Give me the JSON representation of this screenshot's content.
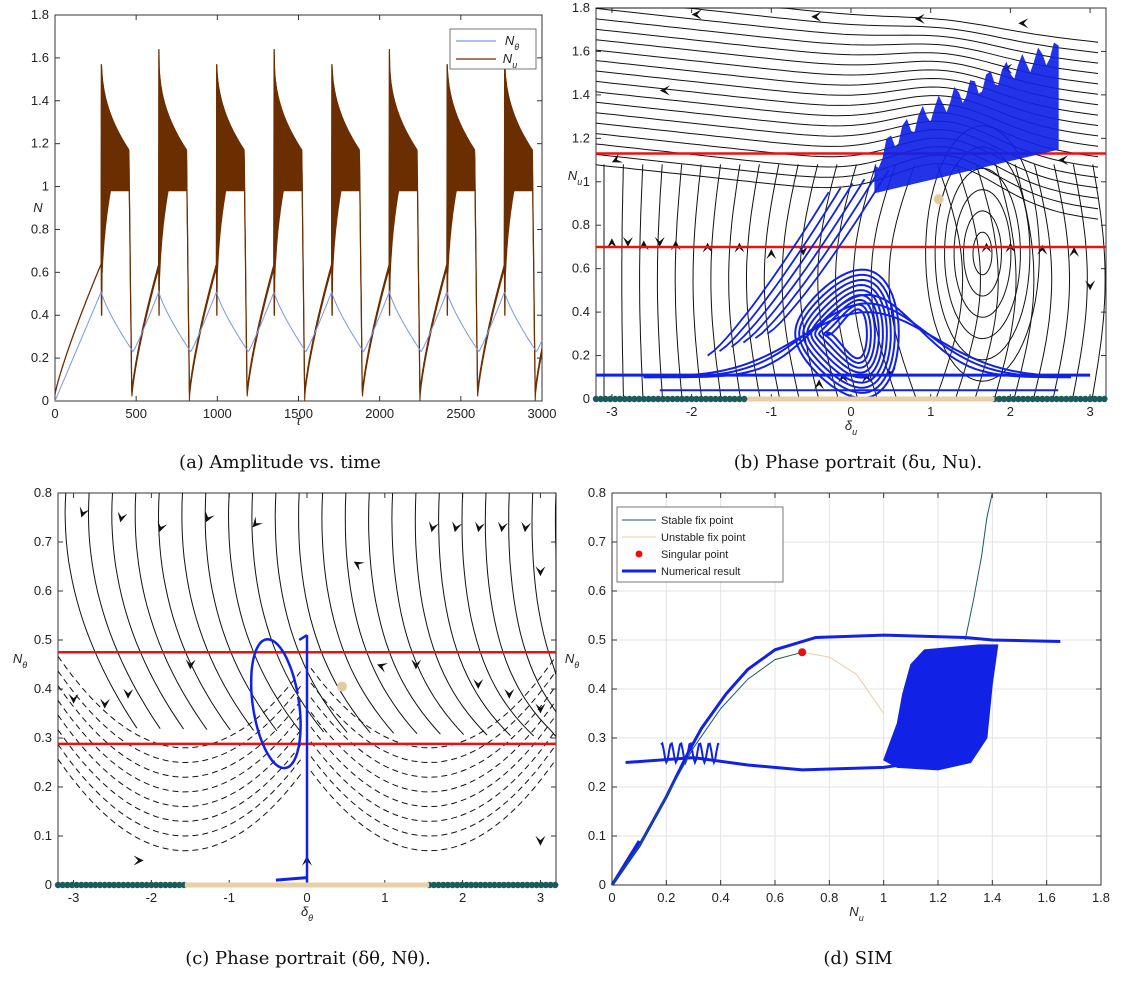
{
  "figure": {
    "captions": {
      "a": "(a) Amplitude vs. time",
      "b": "(b) Phase portrait (δu, Nu).",
      "c": "(c) Phase portrait (δθ, Nθ).",
      "d": "(d) SIM"
    }
  },
  "colors": {
    "n_theta": "#7a96e6",
    "n_u": "#6b2e00",
    "red_line": "#e8130f",
    "traj": "#1122e6",
    "stable": "#1d5a5a",
    "unstable": "#e8cfa5",
    "singular": "#e81010",
    "singular_bg": "#e5c9a0"
  },
  "chart_data": [
    {
      "id": "a",
      "type": "line",
      "title": "",
      "xlabel": "τ",
      "ylabel": "N",
      "xlim": [
        0,
        3000
      ],
      "ylim": [
        0,
        1.8
      ],
      "xticks": [
        0,
        500,
        1000,
        1500,
        2000,
        2500,
        3000
      ],
      "xtick_labels": [
        "0",
        "500",
        "1000",
        "1500",
        "2000",
        "2500",
        "3000"
      ],
      "yticks": [
        0,
        0.2,
        0.4,
        0.6,
        0.8,
        1,
        1.2,
        1.4,
        1.6,
        1.8
      ],
      "ytick_labels": [
        "0",
        "0.2",
        "0.4",
        "0.6",
        "0.8",
        "1",
        "1.2",
        "1.4",
        "1.6",
        "1.8"
      ],
      "legend_position": "top-right",
      "legend": [
        "Nθ",
        "Nu"
      ],
      "series": [
        {
          "name": "Nθ",
          "period": 355,
          "peak": 0.51,
          "trough": 0.23,
          "peak_time": 285
        },
        {
          "name": "Nu",
          "period": 355,
          "peak": 1.64,
          "plateau_high": 1.22,
          "plateau_low": 0.98,
          "min": 0.03,
          "burst_start": 285
        }
      ]
    },
    {
      "id": "b",
      "type": "line",
      "title": "",
      "xlabel": "δu",
      "ylabel": "Nu",
      "xlim": [
        -3.2,
        3.2
      ],
      "ylim": [
        0,
        1.8
      ],
      "xticks": [
        -3,
        -2,
        -1,
        0,
        1,
        2,
        3
      ],
      "xtick_labels": [
        "-3",
        "-2",
        "-1",
        "0",
        "1",
        "2",
        "3"
      ],
      "yticks": [
        0,
        0.2,
        0.4,
        0.6,
        0.8,
        1,
        1.2,
        1.4,
        1.6,
        1.8
      ],
      "ytick_labels": [
        "0",
        "0.2",
        "0.4",
        "0.6",
        "0.8",
        "1",
        "1.2",
        "1.4",
        "1.6",
        "1.8"
      ],
      "horizontal_lines": [
        1.13,
        0.7
      ],
      "singular_point": [
        1.1,
        0.92
      ],
      "stable_segments": [
        [
          -3.2,
          -1.3
        ],
        [
          1.8,
          3.2
        ]
      ],
      "unstable_segment": [
        -1.3,
        1.8
      ]
    },
    {
      "id": "c",
      "type": "line",
      "title": "",
      "xlabel": "δθ",
      "ylabel": "Nθ",
      "xlim": [
        -3.2,
        3.2
      ],
      "ylim": [
        0,
        0.8
      ],
      "xticks": [
        -3,
        -2,
        -1,
        0,
        1,
        2,
        3
      ],
      "xtick_labels": [
        "-3",
        "-2",
        "-1",
        "0",
        "1",
        "2",
        "3"
      ],
      "yticks": [
        0,
        0.1,
        0.2,
        0.3,
        0.4,
        0.5,
        0.6,
        0.7,
        0.8
      ],
      "ytick_labels": [
        "0",
        "0.1",
        "0.2",
        "0.3",
        "0.4",
        "0.5",
        "0.6",
        "0.7",
        "0.8"
      ],
      "horizontal_lines": [
        0.475,
        0.288
      ],
      "singular_point": [
        0.45,
        0.405
      ],
      "stable_segments": [
        [
          -3.2,
          -1.57
        ],
        [
          1.57,
          3.2
        ]
      ],
      "unstable_segment": [
        -1.57,
        1.57
      ]
    },
    {
      "id": "d",
      "type": "line",
      "title": "",
      "xlabel": "Nu",
      "ylabel": "Nθ",
      "xlim": [
        0,
        1.8
      ],
      "ylim": [
        0,
        0.8
      ],
      "xticks": [
        0,
        0.2,
        0.4,
        0.6,
        0.8,
        1,
        1.2,
        1.4,
        1.6,
        1.8
      ],
      "xtick_labels": [
        "0",
        "0.2",
        "0.4",
        "0.6",
        "0.8",
        "1",
        "1.2",
        "1.4",
        "1.6",
        "1.8"
      ],
      "yticks": [
        0,
        0.1,
        0.2,
        0.3,
        0.4,
        0.5,
        0.6,
        0.7,
        0.8
      ],
      "ytick_labels": [
        "0",
        "0.1",
        "0.2",
        "0.3",
        "0.4",
        "0.5",
        "0.6",
        "0.7",
        "0.8"
      ],
      "legend_position": "top-left",
      "legend": [
        "Stable fix point",
        "Unstable fix point",
        "Singular point",
        "Numerical result"
      ],
      "singular_point": [
        0.7,
        0.475
      ],
      "stable_curve": [
        [
          0,
          0
        ],
        [
          0.1,
          0.08
        ],
        [
          0.2,
          0.18
        ],
        [
          0.3,
          0.28
        ],
        [
          0.4,
          0.36
        ],
        [
          0.5,
          0.42
        ],
        [
          0.6,
          0.46
        ],
        [
          0.7,
          0.475
        ]
      ],
      "stable_branch_upper": [
        [
          1.3,
          0.5
        ],
        [
          1.33,
          0.58
        ],
        [
          1.36,
          0.67
        ],
        [
          1.38,
          0.75
        ],
        [
          1.4,
          0.8
        ]
      ],
      "unstable_curve": [
        [
          0.7,
          0.475
        ],
        [
          0.8,
          0.465
        ],
        [
          0.9,
          0.43
        ],
        [
          1.0,
          0.35
        ]
      ]
    }
  ]
}
